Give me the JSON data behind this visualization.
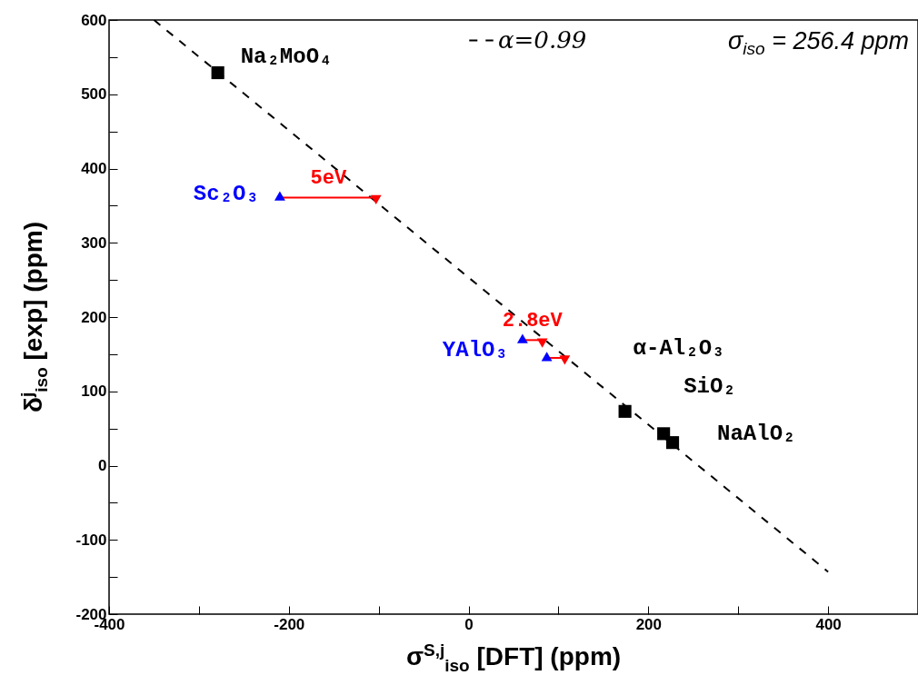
{
  "chart_data": {
    "type": "scatter",
    "xlabel": "σ$^{S,j}$$_{iso}$ [DFT]  (ppm)",
    "ylabel": "δ$^{j}$$_{iso}$ [exp]  (ppm)",
    "annotations": [
      "σ$_{iso}$ = 256.4 ppm",
      {
        "text": "5eV",
        "x": -156,
        "y": 361
      },
      {
        "text": "2.8eV",
        "x": 71,
        "y": 169
      }
    ],
    "xlim": [
      -400,
      500
    ],
    "xticks": [
      -400,
      {
        "value": -300,
        "label": null
      },
      -200,
      {
        "value": -100,
        "label": null
      },
      0,
      {
        "value": 100,
        "label": null
      },
      200,
      {
        "value": 300,
        "label": null
      },
      400
    ],
    "ylim": [
      -200,
      600
    ],
    "yticks": [
      -200,
      {
        "value": -150,
        "label": null
      },
      -100,
      {
        "value": -50,
        "label": null
      },
      0,
      {
        "value": 50,
        "label": null
      },
      100,
      {
        "value": 150,
        "label": null
      },
      200,
      {
        "value": 250,
        "label": null
      },
      300,
      {
        "value": 350,
        "label": null
      },
      400,
      {
        "value": 450,
        "label": null
      },
      500,
      {
        "value": 550,
        "label": null
      },
      600
    ],
    "grid": false,
    "legend": "top right",
    "series": [
      {
        "name": "α=0.99",
        "type": "line",
        "line_style": "dashed",
        "marker": "none",
        "color": "#000000",
        "x": [
          -350,
          400
        ],
        "values": [
          600,
          -143
        ]
      },
      {
        "type": "line",
        "line_style": "solid",
        "marker": "none",
        "color": "#ff0000",
        "x": [
          -210,
          -103
        ],
        "values": [
          361,
          361
        ]
      },
      {
        "type": "line",
        "line_style": "solid",
        "marker": "none",
        "color": "#ff0000",
        "x": [
          60,
          82
        ],
        "values": [
          169,
          169
        ]
      },
      {
        "type": "line",
        "line_style": "solid",
        "marker": "none",
        "color": "#ff0000",
        "x": [
          87,
          107
        ],
        "values": [
          145,
          145
        ]
      },
      {
        "type": "scatter",
        "marker": "square",
        "color": "#000000",
        "x": [
          -279,
          174,
          217,
          227
        ],
        "values": [
          529,
          73,
          43,
          31
        ],
        "value_labels": [
          "Na₂MoO₄",
          "α-Al₂O₃",
          "SiO₂",
          "NaAlO₂"
        ]
      },
      {
        "type": "scatter",
        "marker": "triangle",
        "color": "#0000ff",
        "x": [
          -210,
          60,
          87
        ],
        "values": [
          363,
          171,
          147
        ],
        "value_labels": [
          "Sc₂O₃",
          "YAlO₃",
          null
        ]
      },
      {
        "type": "scatter",
        "marker": "triangle-down",
        "color": "#ff0000",
        "x": [
          -103,
          82,
          107
        ],
        "values": [
          358,
          165,
          142
        ]
      }
    ]
  }
}
